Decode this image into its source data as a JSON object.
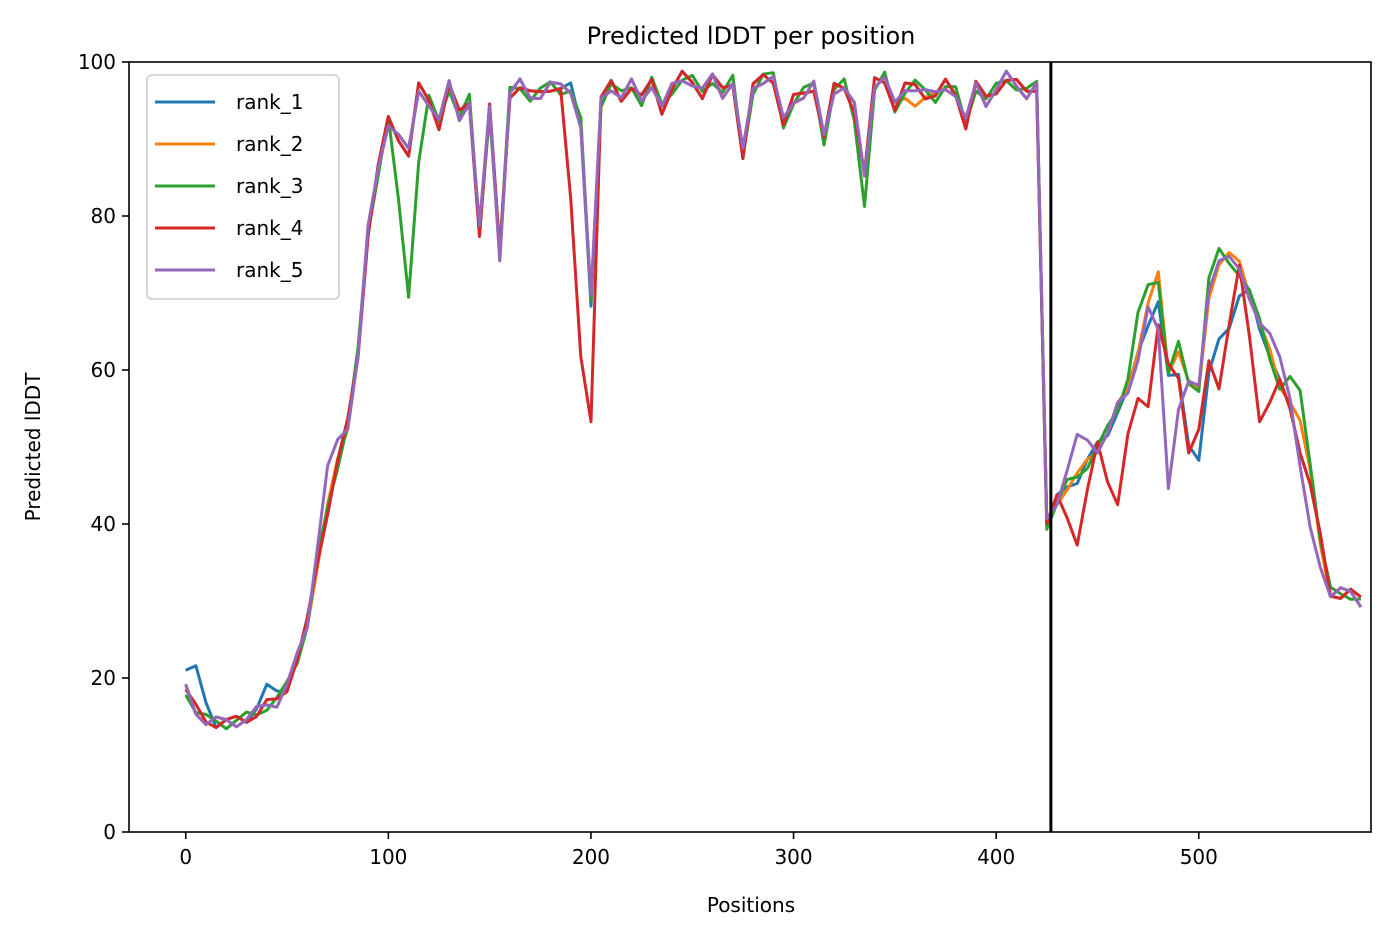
{
  "chart_data": {
    "type": "line",
    "title": "Predicted lDDT per position",
    "xlabel": "Positions",
    "ylabel": "Predicted lDDT",
    "xlim": [
      -28,
      585
    ],
    "ylim": [
      0,
      100
    ],
    "xticks": [
      0,
      100,
      200,
      300,
      400,
      500
    ],
    "yticks": [
      0,
      20,
      40,
      60,
      80,
      100
    ],
    "grid": false,
    "legend_position": "top-left",
    "chain_break_x": 427,
    "x_start": 0,
    "x_step": 5,
    "base_profile": [
      18.5,
      15.8,
      14.5,
      14.3,
      14.2,
      14.4,
      14.8,
      15.5,
      16.5,
      17.0,
      19.0,
      22.5,
      27.0,
      35.0,
      42.0,
      48.0,
      53.0,
      62.0,
      78.0,
      86.0,
      92.5,
      90.5,
      88.0,
      96.5,
      95.0,
      92.0,
      97.0,
      93.0,
      95.0,
      78.0,
      94.0,
      75.0,
      96.0,
      97.0,
      95.5,
      96.0,
      97.0,
      96.5,
      96.5,
      92.0,
      69.0,
      95.0,
      97.0,
      95.5,
      97.0,
      95.0,
      97.5,
      94.0,
      96.5,
      98.0,
      97.5,
      96.0,
      98.0,
      96.0,
      97.5,
      88.0,
      96.5,
      98.0,
      98.0,
      92.0,
      95.0,
      96.0,
      97.0,
      90.0,
      96.5,
      97.0,
      94.0,
      85.0,
      97.5,
      98.0,
      94.0,
      96.5,
      97.0,
      96.0,
      95.5,
      97.0,
      96.0,
      92.0,
      97.0,
      95.0,
      96.5,
      98.0,
      97.0,
      96.0,
      97.0,
      40.0,
      43.0,
      45.0,
      46.0,
      48.0,
      50.0,
      52.0,
      55.0,
      57.0,
      62.0,
      68.0,
      72.0,
      60.0,
      63.0,
      58.0,
      56.0,
      68.0,
      73.0,
      74.0,
      73.0,
      70.0,
      66.0,
      62.0,
      58.0,
      55.0,
      50.0,
      45.0,
      38.0,
      31.0,
      31.0,
      31.0,
      30.0
    ],
    "series": [
      {
        "name": "rank_1",
        "color": "#1f77b4",
        "deltas": [
          {
            "x": 3,
            "dy": 5.0
          },
          {
            "x": 38,
            "dy": 2.0
          },
          {
            "x": 480,
            "dy": -3
          },
          {
            "x": 495,
            "dy": -7
          },
          {
            "x": 505,
            "dy": -9
          },
          {
            "x": 515,
            "dy": -8
          }
        ]
      },
      {
        "name": "rank_2",
        "color": "#ff7f0e",
        "deltas": [
          {
            "x": 360,
            "dy": -2
          },
          {
            "x": 470,
            "dy": 1
          },
          {
            "x": 505,
            "dy": 2
          },
          {
            "x": 520,
            "dy": 1
          },
          {
            "x": 550,
            "dy": 3
          }
        ]
      },
      {
        "name": "rank_3",
        "color": "#2ca02c",
        "deltas": [
          {
            "x": 110,
            "dy": -18
          },
          {
            "x": 335,
            "dy": -3
          },
          {
            "x": 470,
            "dy": 5
          },
          {
            "x": 505,
            "dy": 4
          },
          {
            "x": 550,
            "dy": 7
          }
        ]
      },
      {
        "name": "rank_4",
        "color": "#d62728",
        "deltas": [
          {
            "x": 195,
            "dy": -30
          },
          {
            "x": 440,
            "dy": -8
          },
          {
            "x": 460,
            "dy": -12
          },
          {
            "x": 475,
            "dy": -12
          },
          {
            "x": 495,
            "dy": -8
          },
          {
            "x": 510,
            "dy": -15
          },
          {
            "x": 530,
            "dy": -12
          }
        ]
      },
      {
        "name": "rank_5",
        "color": "#9467bd",
        "deltas": [
          {
            "x": 70,
            "dy": 5
          },
          {
            "x": 440,
            "dy": 5
          },
          {
            "x": 485,
            "dy": -15
          },
          {
            "x": 505,
            "dy": 3
          },
          {
            "x": 540,
            "dy": 4
          },
          {
            "x": 557,
            "dy": -6
          }
        ]
      }
    ]
  }
}
